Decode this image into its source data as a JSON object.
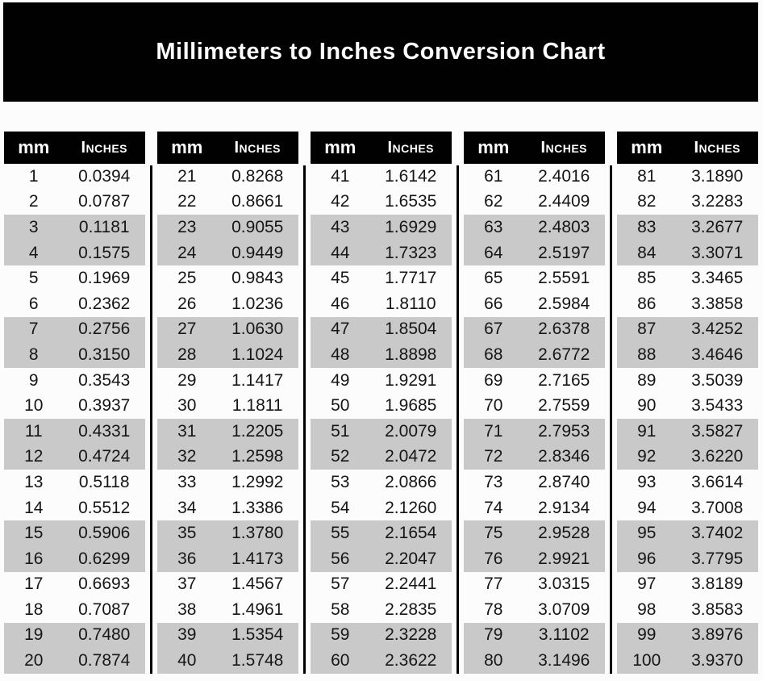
{
  "title": "Millimeters to Inches Conversion Chart",
  "colors": {
    "banner_bg": "#010101",
    "banner_text": "#ffffff",
    "header_bg": "#010101",
    "header_text": "#ffffff",
    "row_bg": "#ffffff",
    "row_alt_bg": "#c9c9c9",
    "data_text": "#161616",
    "divider": "#000000",
    "page_bg": "#fcfcfc"
  },
  "chart_data": {
    "type": "table",
    "title": "Millimeters to Inches Conversion Chart",
    "column_headers": [
      "mm",
      "Inches"
    ],
    "layout": {
      "column_groups": 5,
      "rows_per_group": 20,
      "row_shading": "alternating pairs (rows 3-4, 7-8, 11-12, 15-16, 19-20 of each group shaded gray)"
    },
    "groups": [
      {
        "rows": [
          [
            1,
            "0.0394"
          ],
          [
            2,
            "0.0787"
          ],
          [
            3,
            "0.1181"
          ],
          [
            4,
            "0.1575"
          ],
          [
            5,
            "0.1969"
          ],
          [
            6,
            "0.2362"
          ],
          [
            7,
            "0.2756"
          ],
          [
            8,
            "0.3150"
          ],
          [
            9,
            "0.3543"
          ],
          [
            10,
            "0.3937"
          ],
          [
            11,
            "0.4331"
          ],
          [
            12,
            "0.4724"
          ],
          [
            13,
            "0.5118"
          ],
          [
            14,
            "0.5512"
          ],
          [
            15,
            "0.5906"
          ],
          [
            16,
            "0.6299"
          ],
          [
            17,
            "0.6693"
          ],
          [
            18,
            "0.7087"
          ],
          [
            19,
            "0.7480"
          ],
          [
            20,
            "0.7874"
          ]
        ]
      },
      {
        "rows": [
          [
            21,
            "0.8268"
          ],
          [
            22,
            "0.8661"
          ],
          [
            23,
            "0.9055"
          ],
          [
            24,
            "0.9449"
          ],
          [
            25,
            "0.9843"
          ],
          [
            26,
            "1.0236"
          ],
          [
            27,
            "1.0630"
          ],
          [
            28,
            "1.1024"
          ],
          [
            29,
            "1.1417"
          ],
          [
            30,
            "1.1811"
          ],
          [
            31,
            "1.2205"
          ],
          [
            32,
            "1.2598"
          ],
          [
            33,
            "1.2992"
          ],
          [
            34,
            "1.3386"
          ],
          [
            35,
            "1.3780"
          ],
          [
            36,
            "1.4173"
          ],
          [
            37,
            "1.4567"
          ],
          [
            38,
            "1.4961"
          ],
          [
            39,
            "1.5354"
          ],
          [
            40,
            "1.5748"
          ]
        ]
      },
      {
        "rows": [
          [
            41,
            "1.6142"
          ],
          [
            42,
            "1.6535"
          ],
          [
            43,
            "1.6929"
          ],
          [
            44,
            "1.7323"
          ],
          [
            45,
            "1.7717"
          ],
          [
            46,
            "1.8110"
          ],
          [
            47,
            "1.8504"
          ],
          [
            48,
            "1.8898"
          ],
          [
            49,
            "1.9291"
          ],
          [
            50,
            "1.9685"
          ],
          [
            51,
            "2.0079"
          ],
          [
            52,
            "2.0472"
          ],
          [
            53,
            "2.0866"
          ],
          [
            54,
            "2.1260"
          ],
          [
            55,
            "2.1654"
          ],
          [
            56,
            "2.2047"
          ],
          [
            57,
            "2.2441"
          ],
          [
            58,
            "2.2835"
          ],
          [
            59,
            "2.3228"
          ],
          [
            60,
            "2.3622"
          ]
        ]
      },
      {
        "rows": [
          [
            61,
            "2.4016"
          ],
          [
            62,
            "2.4409"
          ],
          [
            63,
            "2.4803"
          ],
          [
            64,
            "2.5197"
          ],
          [
            65,
            "2.5591"
          ],
          [
            66,
            "2.5984"
          ],
          [
            67,
            "2.6378"
          ],
          [
            68,
            "2.6772"
          ],
          [
            69,
            "2.7165"
          ],
          [
            70,
            "2.7559"
          ],
          [
            71,
            "2.7953"
          ],
          [
            72,
            "2.8346"
          ],
          [
            73,
            "2.8740"
          ],
          [
            74,
            "2.9134"
          ],
          [
            75,
            "2.9528"
          ],
          [
            76,
            "2.9921"
          ],
          [
            77,
            "3.0315"
          ],
          [
            78,
            "3.0709"
          ],
          [
            79,
            "3.1102"
          ],
          [
            80,
            "3.1496"
          ]
        ]
      },
      {
        "rows": [
          [
            81,
            "3.1890"
          ],
          [
            82,
            "3.2283"
          ],
          [
            83,
            "3.2677"
          ],
          [
            84,
            "3.3071"
          ],
          [
            85,
            "3.3465"
          ],
          [
            86,
            "3.3858"
          ],
          [
            87,
            "3.4252"
          ],
          [
            88,
            "3.4646"
          ],
          [
            89,
            "3.5039"
          ],
          [
            90,
            "3.5433"
          ],
          [
            91,
            "3.5827"
          ],
          [
            92,
            "3.6220"
          ],
          [
            93,
            "3.6614"
          ],
          [
            94,
            "3.7008"
          ],
          [
            95,
            "3.7402"
          ],
          [
            96,
            "3.7795"
          ],
          [
            97,
            "3.8189"
          ],
          [
            98,
            "3.8583"
          ],
          [
            99,
            "3.8976"
          ],
          [
            100,
            "3.9370"
          ]
        ]
      }
    ]
  }
}
